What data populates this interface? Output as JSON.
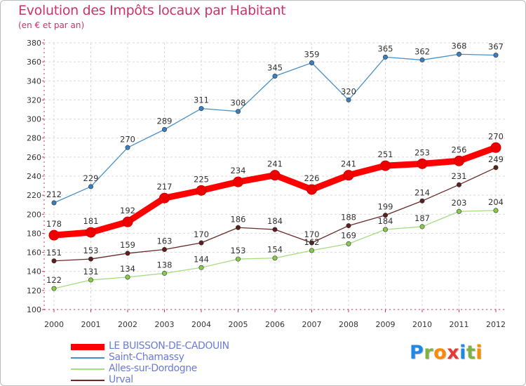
{
  "chart_data": {
    "type": "line",
    "title": "Evolution des Impôts locaux par Habitant",
    "subtitle": "(en € et par an)",
    "xlabel": "",
    "ylabel": "",
    "ylim": [
      100,
      380
    ],
    "yticks": [
      100,
      120,
      140,
      160,
      180,
      200,
      220,
      240,
      260,
      280,
      300,
      320,
      340,
      360,
      380
    ],
    "x": [
      "2000",
      "2001",
      "2002",
      "2003",
      "2004",
      "2005",
      "2006",
      "2007",
      "2008",
      "2009",
      "2010",
      "2011",
      "2012"
    ],
    "grid": true,
    "series": [
      {
        "name": "Saint-Chamassy",
        "color": "#4a90c8",
        "marker": "#3a7fc0",
        "values": [
          212,
          229,
          270,
          289,
          311,
          308,
          345,
          359,
          320,
          365,
          362,
          368,
          367
        ]
      },
      {
        "name": "Alles-sur-Dordogne",
        "color": "#a6dc82",
        "marker": "#86cc4a",
        "values": [
          122,
          131,
          134,
          138,
          144,
          153,
          154,
          162,
          169,
          184,
          187,
          203,
          204
        ]
      },
      {
        "name": "Urval",
        "color": "#6b2a2a",
        "marker": "#5c1f1f",
        "values": [
          151,
          153,
          159,
          163,
          170,
          186,
          184,
          170,
          188,
          199,
          214,
          231,
          249
        ]
      },
      {
        "name": "LE BUISSON-DE-CADOUIN",
        "color": "#ff0000",
        "marker": "#ee0000",
        "values": [
          178,
          181,
          192,
          217,
          225,
          234,
          241,
          226,
          241,
          251,
          253,
          256,
          270
        ]
      }
    ]
  },
  "legend": {
    "items": [
      {
        "label": "LE BUISSON-DE-CADOUIN",
        "color": "#ff0000"
      },
      {
        "label": "Saint-Chamassy",
        "color": "#4a90c8"
      },
      {
        "label": "Alles-sur-Dordogne",
        "color": "#a6dc82"
      },
      {
        "label": "Urval",
        "color": "#6b2a2a"
      }
    ]
  },
  "logo": {
    "letters": [
      "P",
      "r",
      "o",
      "x",
      "i",
      "t",
      "i"
    ],
    "colors": [
      "#1e88e5",
      "#7cb342",
      "#fb8c00",
      "#e53935",
      "#1e88e5",
      "#7cb342",
      "#fb8c00"
    ]
  }
}
